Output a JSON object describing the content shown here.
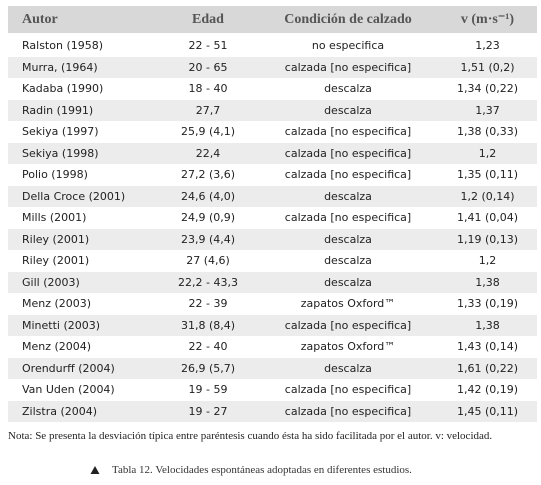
{
  "table": {
    "headers": [
      "Autor",
      "Edad",
      "Condición de calzado",
      "v (m·s⁻¹)"
    ],
    "rows": [
      [
        "Ralston (1958)",
        "22 - 51",
        "no especifica",
        "1,23"
      ],
      [
        "Murra, (1964)",
        "20 - 65",
        "calzada [no especifica]",
        "1,51 (0,2)"
      ],
      [
        "Kadaba (1990)",
        "18 - 40",
        "descalza",
        "1,34 (0,22)"
      ],
      [
        "Radin (1991)",
        "27,7",
        "descalza",
        "1,37"
      ],
      [
        "Sekiya (1997)",
        "25,9 (4,1)",
        "calzada [no especifica]",
        "1,38 (0,33)"
      ],
      [
        "Sekiya (1998)",
        "22,4",
        "calzada [no especifica]",
        "1,2"
      ],
      [
        "Polio (1998)",
        "27,2 (3,6)",
        "calzada [no especifica]",
        "1,35 (0,11)"
      ],
      [
        "Della Croce (2001)",
        "24,6 (4,0)",
        "descalza",
        "1,2 (0,14)"
      ],
      [
        "Mills (2001)",
        "24,9 (0,9)",
        "calzada [no especifica]",
        "1,41 (0,04)"
      ],
      [
        "Riley (2001)",
        "23,9 (4,4)",
        "descalza",
        "1,19 (0,13)"
      ],
      [
        "Riley (2001)",
        "27 (4,6)",
        "descalza",
        "1,2"
      ],
      [
        "Gill (2003)",
        "22,2 - 43,3",
        "descalza",
        "1,38"
      ],
      [
        "Menz (2003)",
        "22 - 39",
        "zapatos Oxford™",
        "1,33 (0,19)"
      ],
      [
        "Minetti (2003)",
        "31,8 (8,4)",
        "calzada [no especifica]",
        "1,38"
      ],
      [
        "Menz (2004)",
        "22 - 40",
        "zapatos Oxford™",
        "1,43 (0,14)"
      ],
      [
        "Orendurff (2004)",
        "26,9 (5,7)",
        "descalza",
        "1,61 (0,22)"
      ],
      [
        "Van Uden (2004)",
        "19 - 59",
        "calzada [no especifica]",
        "1,42 (0,19)"
      ],
      [
        "Zilstra (2004)",
        "19 - 27",
        "calzada [no especifica]",
        "1,45 (0,11)"
      ]
    ],
    "note": "Nota: Se presenta la desviación típica entre paréntesis cuando ésta ha sido facilitada por el autor. v: velocidad.",
    "caption": "Tabla 12. Velocidades espontáneas adoptadas en diferentes estudios."
  }
}
